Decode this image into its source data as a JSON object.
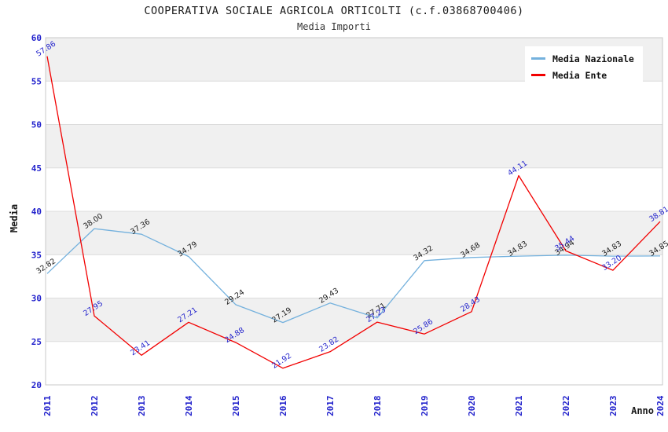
{
  "chart_data": {
    "type": "line",
    "title": "COOPERATIVA SOCIALE AGRICOLA ORTICOLTI (c.f.03868700406)",
    "subtitle": "Media Importi",
    "xlabel": "Anno",
    "ylabel": "Media",
    "ylim": [
      20,
      60
    ],
    "ytick_step": 5,
    "grid": true,
    "legend_position": "top-right",
    "band_pattern": "alternating gray stripes every 5 units (25-30, 35-40, 45-50, 55-60)",
    "categories": [
      "2011",
      "2012",
      "2013",
      "2014",
      "2015",
      "2016",
      "2017",
      "2018",
      "2019",
      "2020",
      "2021",
      "2022",
      "2023",
      "2024"
    ],
    "series": [
      {
        "name": "Media Nazionale",
        "color": "#74b1dd",
        "label_color": "#1a1a1a",
        "values": [
          32.82,
          38.0,
          37.36,
          34.79,
          29.24,
          27.19,
          29.43,
          27.71,
          34.32,
          34.68,
          34.83,
          34.94,
          34.83,
          34.85
        ]
      },
      {
        "name": "Media Ente",
        "color": "#f20000",
        "label_color": "#2222cc",
        "values": [
          57.86,
          27.95,
          23.41,
          27.21,
          24.88,
          21.92,
          23.82,
          27.23,
          25.86,
          28.43,
          44.11,
          35.44,
          33.2,
          38.81
        ]
      }
    ],
    "colors": {
      "band": "#f0f0f0",
      "grid": "#dcdcdc",
      "border": "#c8c8c8",
      "tick_text": "#2222cc"
    }
  }
}
